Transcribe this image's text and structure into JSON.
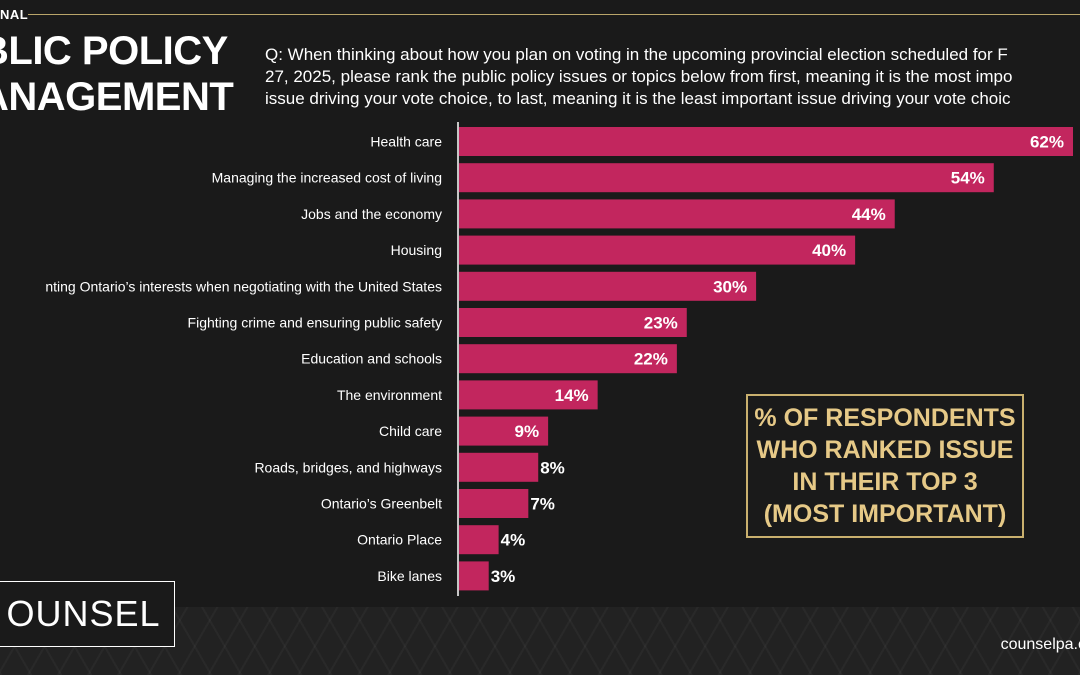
{
  "header": {
    "topline_label": "NAL",
    "title_line1": "BLIC POLICY",
    "title_line2": "ANAGEMENT",
    "question_line1": "Q: When thinking about how you plan on voting in the upcoming provincial election scheduled for F",
    "question_line2": "27, 2025, please rank the public policy issues or topics below from first, meaning it is the most impo",
    "question_line3": "issue driving your vote choice, to last, meaning it is the least important issue driving your vote choic"
  },
  "callout": {
    "line1": "% OF RESPONDENTS",
    "line2": "WHO RANKED ISSUE",
    "line3": "IN THEIR TOP 3",
    "line4": "(MOST IMPORTANT)"
  },
  "footer": {
    "logo": "OUNSEL",
    "site": "counselpa.c"
  },
  "colors": {
    "bar": "#c2265e",
    "axis": "#ffffff",
    "accent_gold": "#e6c987",
    "background": "#1a1a1a"
  },
  "chart_data": {
    "type": "bar",
    "orientation": "horizontal",
    "categories": [
      "Health care",
      "Managing the increased cost of living",
      "Jobs and the economy",
      "Housing",
      "nting Ontario’s interests when negotiating with the United States",
      "Fighting crime and ensuring public safety",
      "Education and schools",
      "The environment",
      "Child care",
      "Roads, bridges, and highways",
      "Ontario’s Greenbelt",
      "Ontario Place",
      "Bike lanes"
    ],
    "values": [
      62,
      54,
      44,
      40,
      30,
      23,
      22,
      14,
      9,
      8,
      7,
      4,
      3
    ],
    "data_labels": [
      "62%",
      "54%",
      "44%",
      "40%",
      "30%",
      "23%",
      "22%",
      "14%",
      "9%",
      "8%",
      "7%",
      "4%",
      "3%"
    ],
    "xlim": [
      0,
      62
    ],
    "grid": false,
    "legend": "none"
  }
}
